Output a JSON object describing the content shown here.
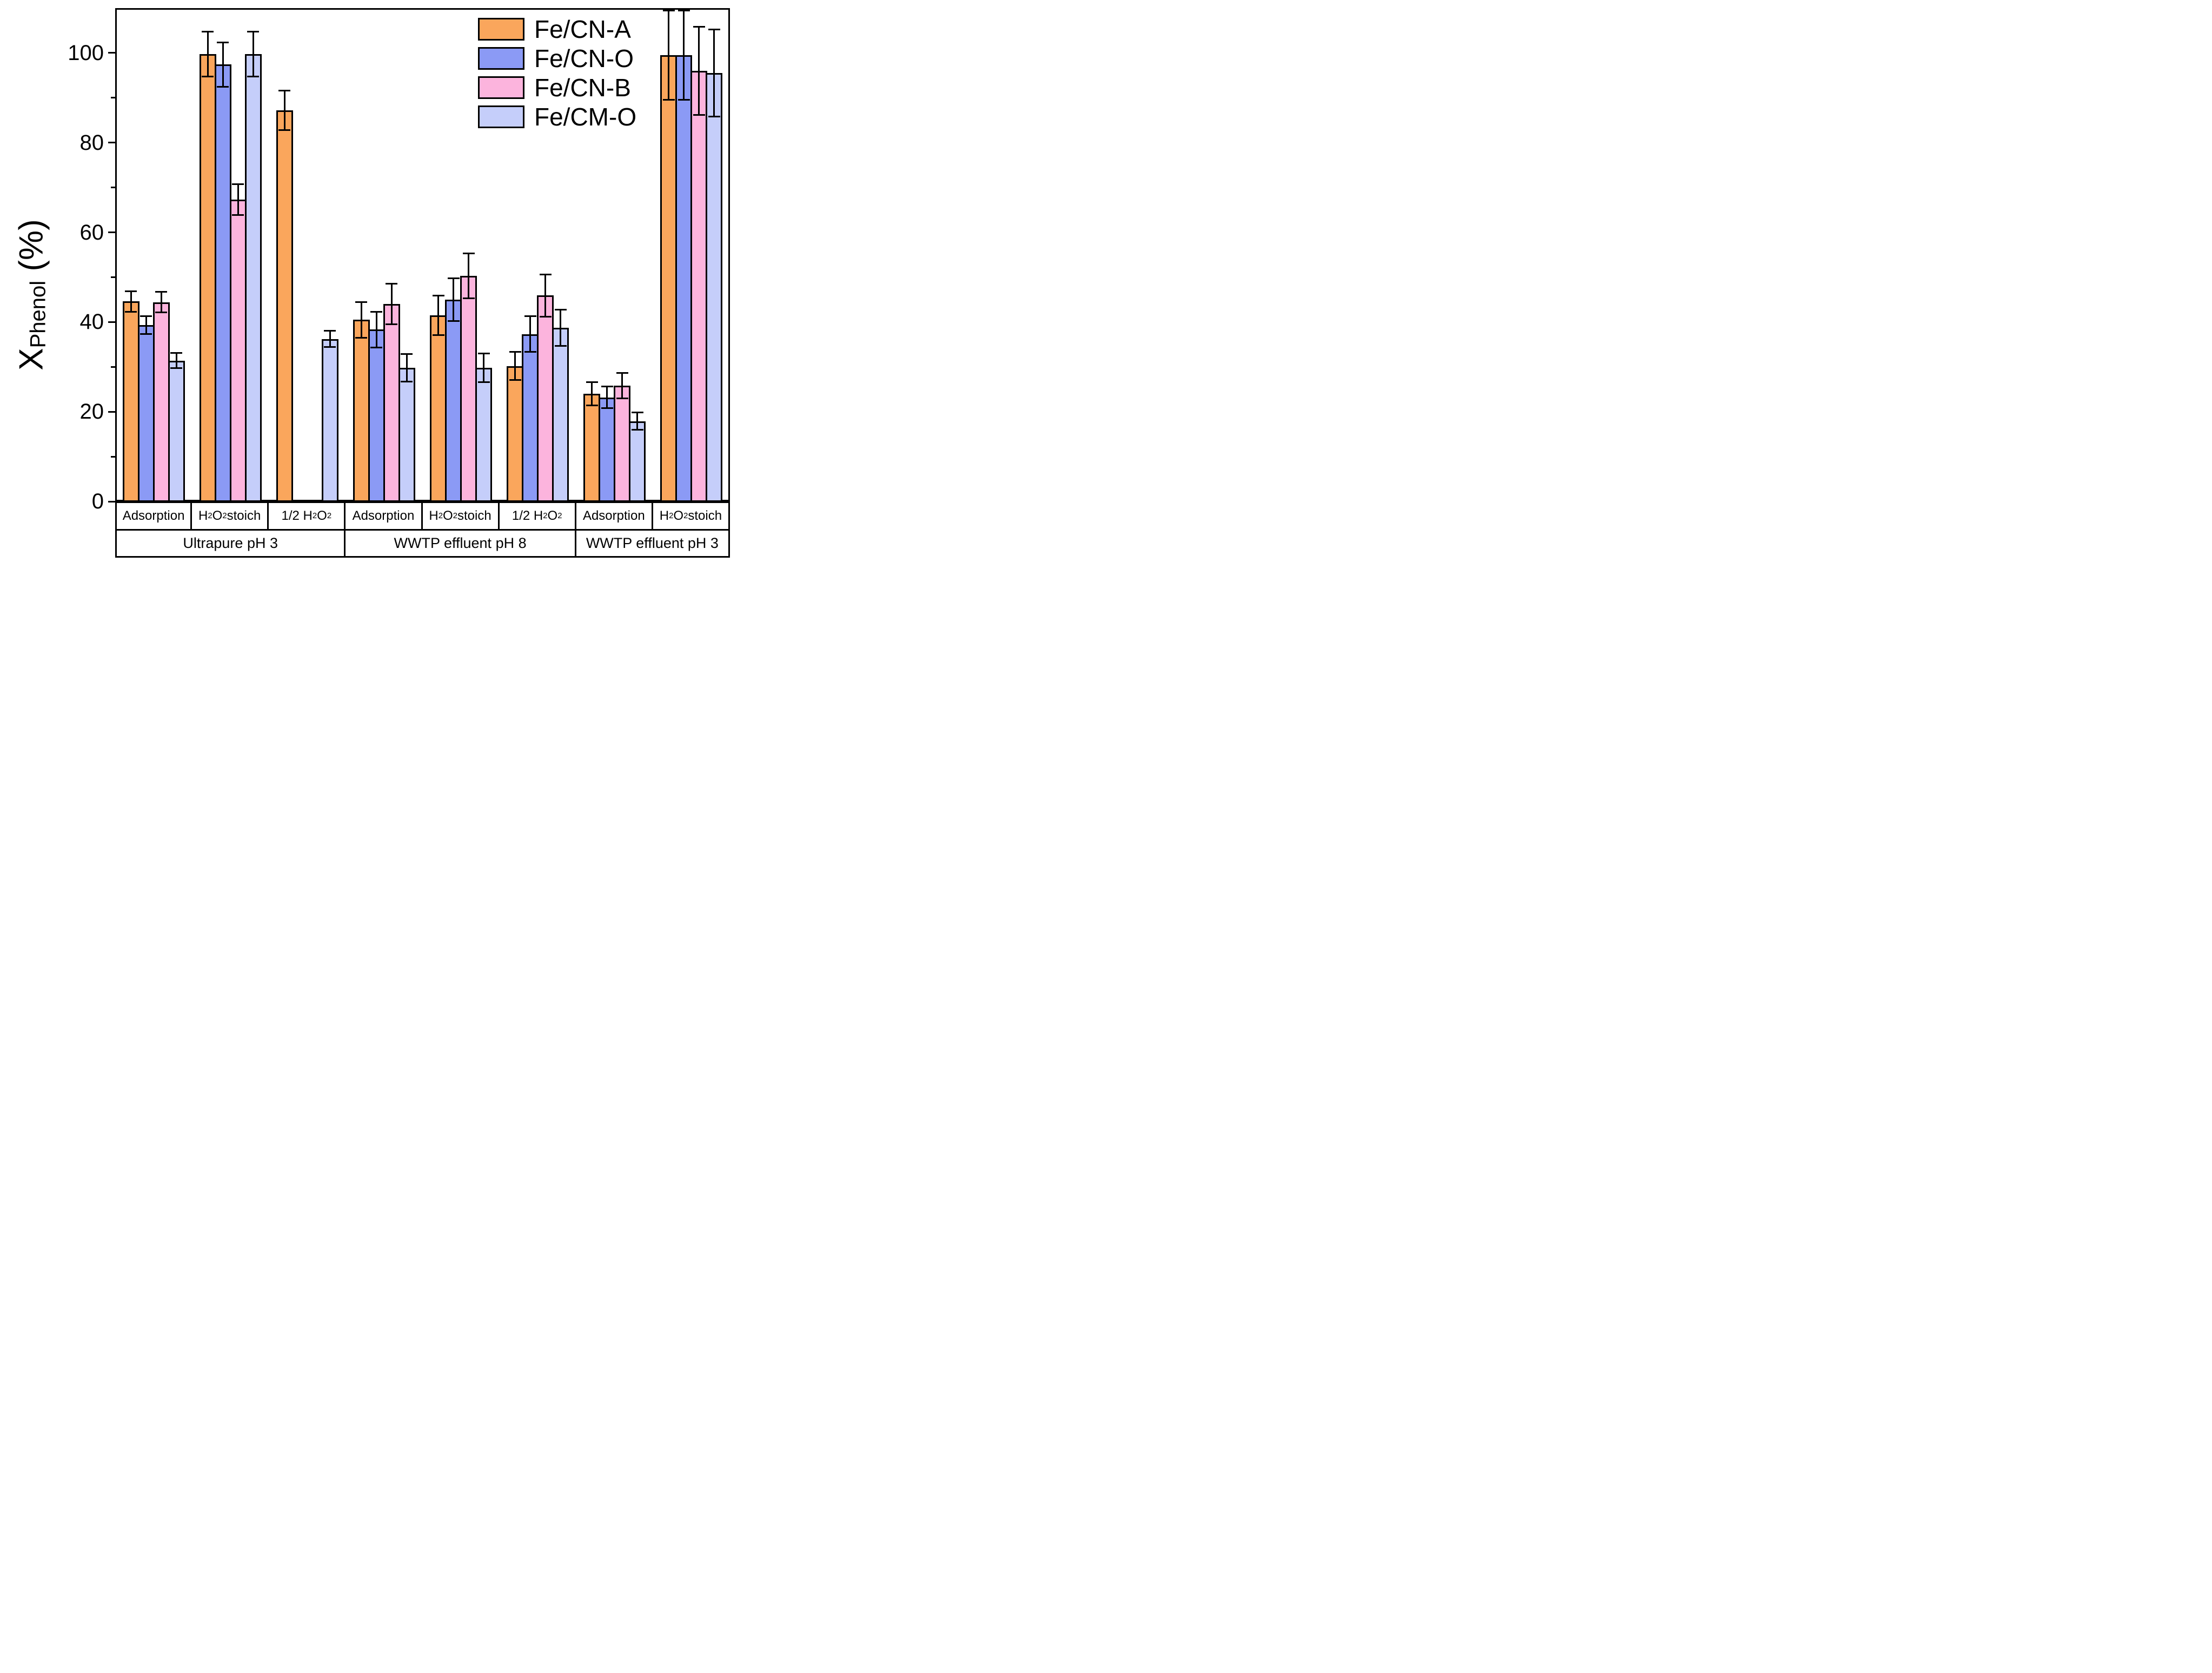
{
  "figure": {
    "ylabel": {
      "main": "X",
      "sub": "Phenol",
      "unit": " (%)"
    }
  },
  "chart_data": {
    "type": "bar",
    "title": "",
    "xlabel": "",
    "ylabel": "X_Phenol (%)",
    "ylim": [
      0,
      110
    ],
    "yticks": [
      0,
      20,
      40,
      60,
      80,
      100
    ],
    "yminorticks": [
      10,
      30,
      50,
      70,
      90
    ],
    "grid": false,
    "legend_position": "top-right",
    "categories": [
      "Adsorption",
      "H₂O₂ stoich",
      "1/2 H₂O₂",
      "Adsorption",
      "H₂O₂ stoich",
      "1/2 H₂O₂",
      "Adsorption",
      "H₂O₂ stoich"
    ],
    "condition_groups": [
      {
        "label": "Ultrapure pH 3",
        "span": 3
      },
      {
        "label": "WWTP effluent pH 8",
        "span": 3
      },
      {
        "label": "WWTP effluent pH 3",
        "span": 2
      }
    ],
    "series": [
      {
        "name": "Fe/CN-A",
        "color": "#FAA65C",
        "values": [
          44.6,
          99.8,
          87.2,
          40.5,
          41.5,
          30.2,
          24.0,
          99.5
        ],
        "errors": [
          2.3,
          5.0,
          4.4,
          4.0,
          4.4,
          3.1,
          2.6,
          10.0
        ]
      },
      {
        "name": "Fe/CN-O",
        "color": "#8B9AF5",
        "values": [
          39.3,
          97.4,
          null,
          38.3,
          45.0,
          37.3,
          23.2,
          99.5
        ],
        "errors": [
          2.0,
          4.9,
          null,
          4.0,
          4.8,
          4.0,
          2.4,
          10.0
        ]
      },
      {
        "name": "Fe/CN-B",
        "color": "#FCB4DD",
        "values": [
          44.4,
          67.3,
          null,
          44.0,
          50.3,
          45.9,
          25.8,
          96.0
        ],
        "errors": [
          2.3,
          3.4,
          null,
          4.5,
          5.0,
          4.7,
          2.8,
          9.8
        ]
      },
      {
        "name": "Fe/CM-O",
        "color": "#C5CEFA",
        "values": [
          31.4,
          99.8,
          36.2,
          29.8,
          29.8,
          38.7,
          17.9,
          95.5
        ],
        "errors": [
          1.7,
          5.0,
          1.8,
          3.1,
          3.2,
          4.0,
          1.9,
          9.7
        ]
      }
    ]
  }
}
